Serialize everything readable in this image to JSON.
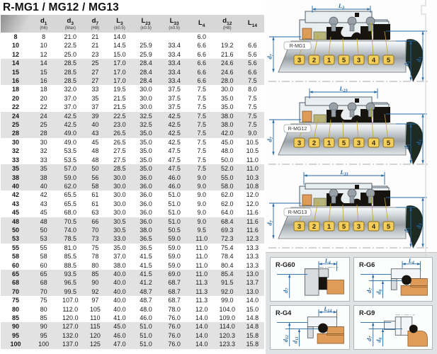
{
  "title": "R-MG1 / MG12 / MG13",
  "table": {
    "headers": [
      {
        "sym": "",
        "note": ""
      },
      {
        "sym": "d1",
        "note": "(h6)"
      },
      {
        "sym": "d3",
        "note": "(Max)"
      },
      {
        "sym": "d7",
        "note": "(H8)"
      },
      {
        "sym": "L3",
        "note": "(±0.5)"
      },
      {
        "sym": "L23",
        "note": "(±0.5)"
      },
      {
        "sym": "L33",
        "note": "(±0.5)"
      },
      {
        "sym": "L4",
        "note": ""
      },
      {
        "sym": "d12",
        "note": "(H8)"
      },
      {
        "sym": "L14",
        "note": ""
      }
    ],
    "rows": [
      [
        "8",
        "8",
        "21.0",
        "21",
        "14.0",
        "",
        "",
        "6.0",
        "",
        ""
      ],
      [
        "10",
        "10",
        "22.5",
        "21",
        "14.5",
        "25.9",
        "33.4",
        "6.6",
        "19.2",
        "6.6"
      ],
      [
        "12",
        "12",
        "25.0",
        "23",
        "15.0",
        "25.9",
        "33.4",
        "6.6",
        "21.6",
        "5.6"
      ],
      [
        "14",
        "14",
        "28.5",
        "25",
        "17.0",
        "28.4",
        "33.4",
        "6.6",
        "24.6",
        "5.6"
      ],
      [
        "15",
        "15",
        "28.5",
        "27",
        "17.0",
        "28.4",
        "33.4",
        "6.6",
        "24.6",
        "6.6"
      ],
      [
        "16",
        "16",
        "28.5",
        "27",
        "17.0",
        "28.4",
        "33.4",
        "6.6",
        "28.0",
        "7.5"
      ],
      [
        "18",
        "18",
        "32.0",
        "33",
        "19.5",
        "30.0",
        "37.5",
        "7.5",
        "30.0",
        "8.0"
      ],
      [
        "20",
        "20",
        "37.0",
        "35",
        "21.5",
        "30.0",
        "37.5",
        "7.5",
        "35.0",
        "7.5"
      ],
      [
        "22",
        "22",
        "37.0",
        "37",
        "21.5",
        "30.0",
        "37.5",
        "7.5",
        "35.0",
        "7.5"
      ],
      [
        "24",
        "24",
        "42.5",
        "39",
        "22.5",
        "32.5",
        "42.5",
        "7.5",
        "38.0",
        "7.5"
      ],
      [
        "25",
        "25",
        "42.5",
        "40",
        "23.0",
        "32.5",
        "42.5",
        "7.5",
        "38.0",
        "7.5"
      ],
      [
        "28",
        "28",
        "49.0",
        "43",
        "26.5",
        "35.0",
        "42.5",
        "7.5",
        "42.0",
        "9.0"
      ],
      [
        "30",
        "30",
        "49.0",
        "45",
        "26.5",
        "35.0",
        "42.5",
        "7.5",
        "45.0",
        "10.5"
      ],
      [
        "32",
        "32",
        "53.5",
        "48",
        "27.5",
        "35.0",
        "47.5",
        "7.5",
        "48.0",
        "10.5"
      ],
      [
        "33",
        "33",
        "53.5",
        "48",
        "27.5",
        "35.0",
        "47.5",
        "7.5",
        "50.0",
        "11.0"
      ],
      [
        "35",
        "35",
        "57.0",
        "50",
        "28.5",
        "35.0",
        "47.5",
        "7.5",
        "52.0",
        "11.0"
      ],
      [
        "38",
        "38",
        "59.0",
        "56",
        "30.0",
        "36.0",
        "46.0",
        "9.0",
        "55.0",
        "10.3"
      ],
      [
        "40",
        "40",
        "62.0",
        "58",
        "30.0",
        "36.0",
        "46.0",
        "9.0",
        "58.0",
        "10.8"
      ],
      [
        "42",
        "42",
        "65.5",
        "61",
        "30.0",
        "36.0",
        "51.0",
        "9.0",
        "62.0",
        "12.0"
      ],
      [
        "43",
        "43",
        "65.5",
        "61",
        "30.0",
        "36.0",
        "51.0",
        "9.0",
        "62.0",
        "12.0"
      ],
      [
        "45",
        "45",
        "68.0",
        "63",
        "30.0",
        "36.0",
        "51.0",
        "9.0",
        "64.0",
        "11.6"
      ],
      [
        "48",
        "48",
        "70.5",
        "66",
        "30.5",
        "36.0",
        "51.0",
        "9.0",
        "68.4",
        "11.6"
      ],
      [
        "50",
        "50",
        "74.0",
        "70",
        "30.5",
        "38.0",
        "50.5",
        "9.5",
        "69.3",
        "11.6"
      ],
      [
        "53",
        "53",
        "78.5",
        "73",
        "33.0",
        "36.5",
        "59.0",
        "11.0",
        "72.3",
        "12.3"
      ],
      [
        "55",
        "55",
        "81.0",
        "75",
        "35.0",
        "36.5",
        "59.0",
        "11.0",
        "75.4",
        "13.3"
      ],
      [
        "58",
        "58",
        "85.5",
        "78",
        "37.0",
        "41.5",
        "59.0",
        "11.0",
        "78.4",
        "13.3"
      ],
      [
        "60",
        "60",
        "88.5",
        "80",
        "38.0",
        "41.5",
        "59.0",
        "11.0",
        "80.4",
        "13.3"
      ],
      [
        "65",
        "65",
        "93.5",
        "85",
        "40.0",
        "41.5",
        "69.0",
        "11.0",
        "85.4",
        "13.0"
      ],
      [
        "68",
        "68",
        "96.5",
        "90",
        "40.0",
        "41.2",
        "68.7",
        "11.3",
        "91.5",
        "13.7"
      ],
      [
        "70",
        "70",
        "99.5",
        "92",
        "40.0",
        "48.7",
        "68.7",
        "11.3",
        "92.0",
        "13.0"
      ],
      [
        "75",
        "75",
        "107.0",
        "97",
        "40.0",
        "48.7",
        "68.7",
        "11.3",
        "99.0",
        "14.0"
      ],
      [
        "80",
        "80",
        "112.0",
        "105",
        "40.0",
        "48.0",
        "78.0",
        "12.0",
        "104.0",
        "15.0"
      ],
      [
        "85",
        "85",
        "120.0",
        "110",
        "41.0",
        "46.0",
        "76.0",
        "14.0",
        "109.0",
        "14.8"
      ],
      [
        "90",
        "90",
        "127.0",
        "115",
        "45.0",
        "51.0",
        "76.0",
        "14.0",
        "114.0",
        "14.8"
      ],
      [
        "95",
        "95",
        "132.0",
        "120",
        "46.0",
        "51.0",
        "76.0",
        "14.0",
        "120.3",
        "15.8"
      ],
      [
        "100",
        "100",
        "137.0",
        "125",
        "47.0",
        "51.0",
        "76.0",
        "14.0",
        "123.3",
        "15.8"
      ]
    ]
  },
  "diagrams": [
    {
      "name": "R-MG1",
      "top_dim": "L3",
      "left_dim": "d7",
      "right_dims": [
        "d1",
        "d3"
      ],
      "balloons": [
        "3",
        "2",
        "1",
        "5",
        "3",
        "4",
        "5"
      ]
    },
    {
      "name": "R-MG12",
      "top_dim": "L23",
      "left_dim": "d7",
      "right_dims": [
        "d1",
        "d3"
      ],
      "balloons": [
        "3",
        "2",
        "1",
        "5",
        "3",
        "4",
        "5"
      ]
    },
    {
      "name": "R-MG13",
      "top_dim": "L33",
      "left_dim": "d7",
      "right_dims": [
        "d1",
        "d3"
      ],
      "balloons": [
        "3",
        "2",
        "1",
        "5",
        "3",
        "4",
        "5"
      ]
    }
  ],
  "detail_cards": [
    {
      "name": "R-G60",
      "top_dim": "L4",
      "left_dims": [
        "d7"
      ]
    },
    {
      "name": "R-G6",
      "top_dim": "L4",
      "left_dims": [
        "d7",
        "d6"
      ]
    },
    {
      "name": "R-G4",
      "top_dim": "L14",
      "left_dims": [
        "d12",
        "d11"
      ]
    },
    {
      "name": "R-G9",
      "top_dim": "",
      "left_dims": [
        "d7",
        "d6"
      ]
    }
  ],
  "colors": {
    "dim_blue": "#2467a2",
    "band_gray": "#e2e2e2",
    "header_gray": "#d7d7d7",
    "gold_balloon": "#f2ce5c",
    "gold_border": "#8a6d1f",
    "leader_gold": "#c9a227",
    "orange_part": "#df9c59",
    "olive_part": "#b7b47a",
    "black_part": "#17130e",
    "housing_fill": "#e9eef1",
    "housing_stroke": "#42505c",
    "shaft_dark": "#1d2b24",
    "spring_gray": "#99a1a8"
  }
}
